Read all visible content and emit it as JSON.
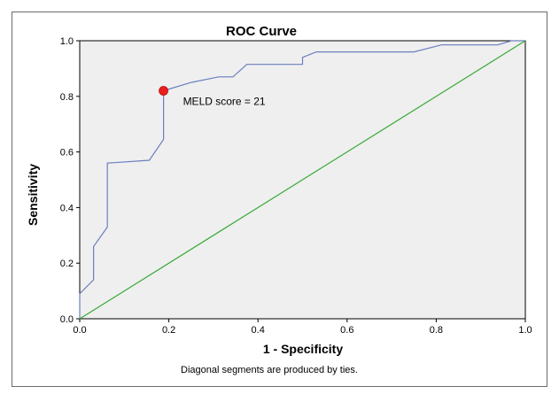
{
  "chart_data": {
    "type": "line",
    "title": "ROC Curve",
    "xlabel": "1 - Specificity",
    "ylabel": "Sensitivity",
    "xlim": [
      0,
      1
    ],
    "ylim": [
      0,
      1
    ],
    "xticks": [
      "0.0",
      "0.2",
      "0.4",
      "0.6",
      "0.8",
      "1.0"
    ],
    "yticks": [
      "0.0",
      "0.2",
      "0.4",
      "0.6",
      "0.8",
      "1.0"
    ],
    "footnote": "Diagonal segments are produced by ties.",
    "series": [
      {
        "x": [
          0,
          0,
          0.031,
          0.031,
          0.062,
          0.062,
          0.156,
          0.188,
          0.188,
          0.188,
          0.25,
          0.312,
          0.344,
          0.375,
          0.5,
          0.5,
          0.531,
          0.75,
          0.812,
          0.875,
          0.938,
          0.969,
          1.0
        ],
        "y": [
          0,
          0.09,
          0.14,
          0.26,
          0.33,
          0.56,
          0.57,
          0.645,
          0.82,
          0.82,
          0.85,
          0.87,
          0.87,
          0.915,
          0.915,
          0.94,
          0.96,
          0.96,
          0.985,
          0.985,
          0.985,
          1.0,
          1.0
        ],
        "color": "#6b7fbf"
      },
      {
        "x": [
          0,
          1
        ],
        "y": [
          0,
          1
        ],
        "color": "#33aa33"
      }
    ],
    "annotations": [
      {
        "x": 0.188,
        "y": 0.82,
        "label": "MELD score = 21",
        "marker_color": "#e8201c"
      }
    ],
    "plot_background": "#efefef"
  }
}
